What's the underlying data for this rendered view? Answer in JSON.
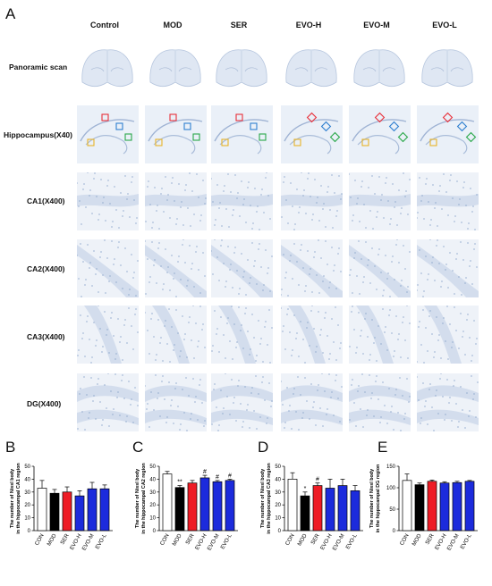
{
  "figure": {
    "panel_letters": [
      "A",
      "B",
      "C",
      "D",
      "E"
    ],
    "column_headers": [
      "Control",
      "MOD",
      "SER",
      "EVO-H",
      "EVO-M",
      "EVO-L"
    ],
    "row_labels": [
      "Panoramic scan",
      "Hippocampus(X40)",
      "CA1(X400)",
      "CA2(X400)",
      "CA3(X400)",
      "DG(X400)"
    ],
    "roi_colors": [
      "#e8303a",
      "#2f7fd0",
      "#2aa84a",
      "#e8b42a"
    ]
  },
  "chart_data": [
    {
      "panel": "B",
      "type": "bar",
      "ylabel": [
        "The number of Nissl body",
        "in the hippocampal CA1 region"
      ],
      "categories": [
        "CON",
        "MOD",
        "SER",
        "EVO-H",
        "EVO-M",
        "EVO-L"
      ],
      "values": [
        33,
        29,
        30,
        27,
        32.5,
        32.5
      ],
      "errors": [
        6,
        3,
        4,
        4,
        5,
        3
      ],
      "colors": [
        "#ffffff",
        "#000000",
        "#ee1c25",
        "#1c2bdc",
        "#1c2bdc",
        "#1c2bdc"
      ],
      "ylim": [
        0,
        50
      ],
      "yticks": [
        0,
        10,
        20,
        30,
        40,
        50
      ],
      "annotations": [
        "",
        "",
        "",
        "",
        "",
        ""
      ]
    },
    {
      "panel": "C",
      "type": "bar",
      "ylabel": [
        "The number of Nissl body",
        "in the hippocampal CA2 region"
      ],
      "categories": [
        "CON",
        "MOD",
        "SER",
        "EVO-H",
        "EVO-M",
        "EVO-L"
      ],
      "values": [
        44,
        33.5,
        37,
        41,
        38,
        39
      ],
      "errors": [
        2,
        1.5,
        2,
        2,
        1,
        1
      ],
      "colors": [
        "#ffffff",
        "#000000",
        "#ee1c25",
        "#1c2bdc",
        "#1c2bdc",
        "#1c2bdc"
      ],
      "ylim": [
        0,
        50
      ],
      "yticks": [
        0,
        10,
        20,
        30,
        40,
        50
      ],
      "annotations": [
        "",
        "**",
        "",
        "#",
        "#",
        "#"
      ]
    },
    {
      "panel": "D",
      "type": "bar",
      "ylabel": [
        "The number of Nissl body",
        "in the hippocampal CA3 region"
      ],
      "categories": [
        "CON",
        "MOD",
        "SER",
        "EVO-H",
        "EVO-M",
        "EVO-L"
      ],
      "values": [
        40,
        27,
        35,
        33,
        35,
        31
      ],
      "errors": [
        5,
        3,
        2,
        7,
        5,
        4
      ],
      "colors": [
        "#ffffff",
        "#000000",
        "#ee1c25",
        "#1c2bdc",
        "#1c2bdc",
        "#1c2bdc"
      ],
      "ylim": [
        0,
        50
      ],
      "yticks": [
        0,
        10,
        20,
        30,
        40,
        50
      ],
      "annotations": [
        "",
        "*",
        "#",
        "",
        "",
        ""
      ]
    },
    {
      "panel": "E",
      "type": "bar",
      "ylabel": [
        "The number of Nissl body",
        "in the hippocampal DG region"
      ],
      "categories": [
        "CON",
        "MOD",
        "SER",
        "EVO-H",
        "EVO-M",
        "EVO-L"
      ],
      "values": [
        117,
        107,
        115,
        111,
        112,
        115
      ],
      "errors": [
        15,
        4,
        3,
        3,
        3,
        2
      ],
      "colors": [
        "#ffffff",
        "#000000",
        "#ee1c25",
        "#1c2bdc",
        "#1c2bdc",
        "#1c2bdc"
      ],
      "ylim": [
        0,
        150
      ],
      "yticks": [
        0,
        50,
        100,
        150
      ],
      "annotations": [
        "",
        "",
        "",
        "",
        "",
        ""
      ]
    }
  ]
}
